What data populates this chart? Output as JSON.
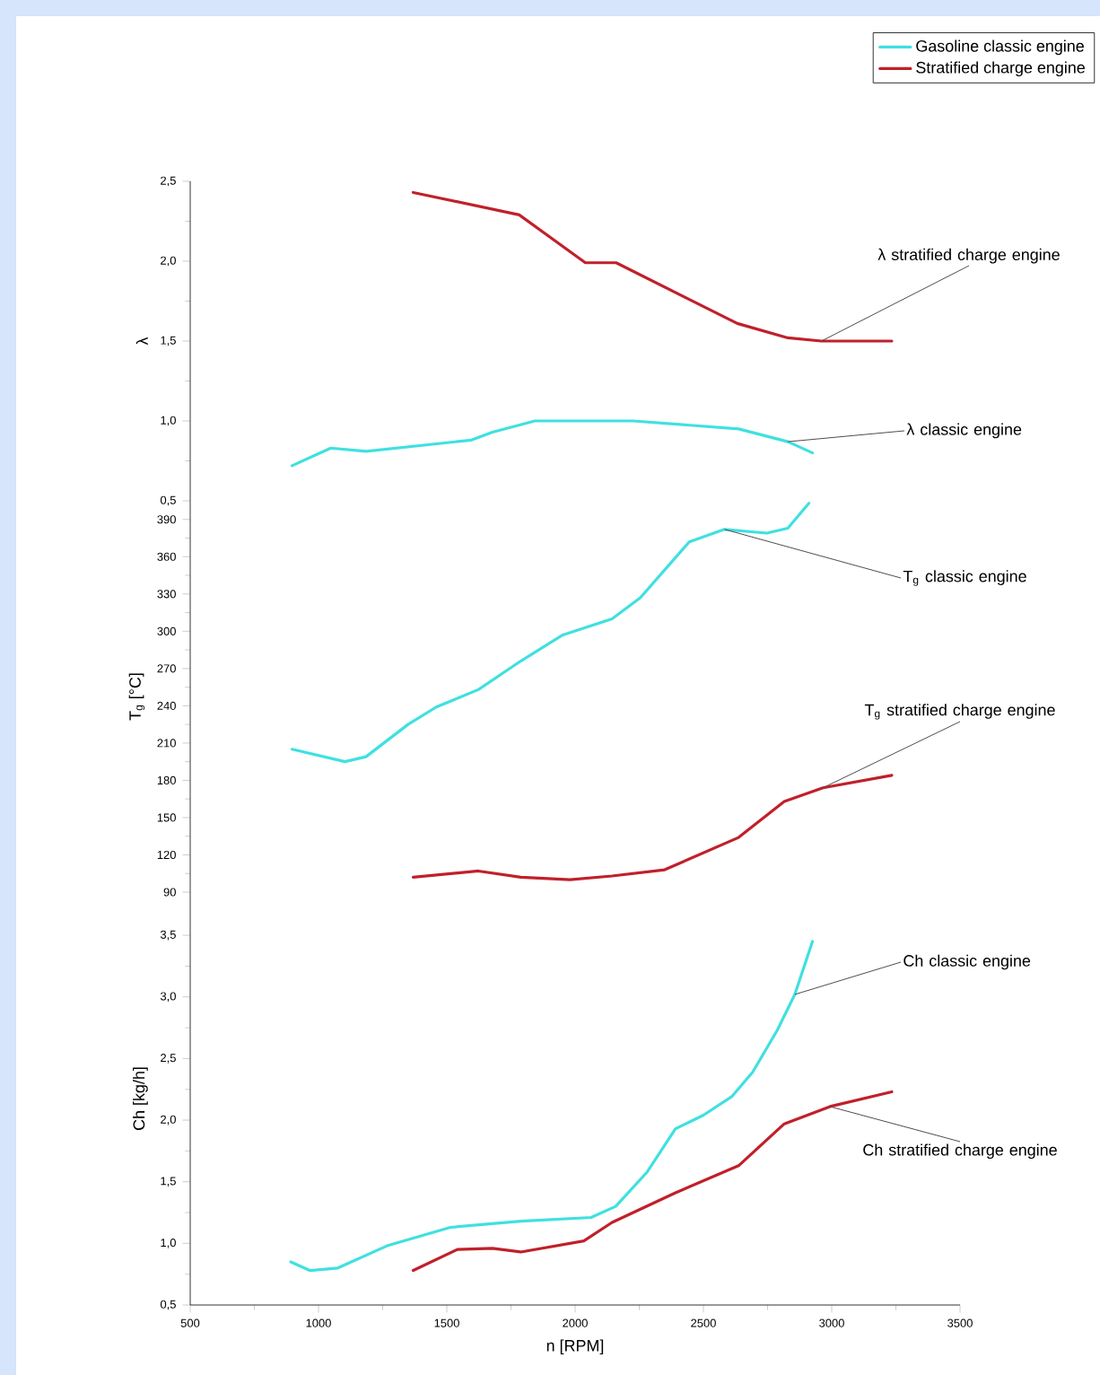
{
  "chart_data": [
    {
      "type": "line",
      "ylabel": "λ",
      "xlim": [
        500,
        3500
      ],
      "ylim": [
        0.5,
        2.5
      ],
      "tick_labels": "y",
      "legend": "top right",
      "yticks": [
        {
          "value": 0.5,
          "label": "0,5"
        },
        {
          "value": 1.0,
          "label": "1,0"
        },
        {
          "value": 1.5,
          "label": "1,5"
        },
        {
          "value": 2.0,
          "label": "2,0"
        },
        {
          "value": 2.5,
          "label": "2,5"
        }
      ],
      "series": [
        {
          "name": "Gasoline classic engine",
          "color": "#40e0e0",
          "x": [
            897,
            1048,
            1185,
            1596,
            1678,
            1843,
            2226,
            2637,
            2829,
            2925
          ],
          "values": [
            0.72,
            0.83,
            0.81,
            0.88,
            0.93,
            1.0,
            1.0,
            0.95,
            0.87,
            0.8
          ]
        },
        {
          "name": "Stratified charge engine",
          "color": "#c0202a",
          "x": [
            1369,
            1782,
            2040,
            2160,
            2632,
            2829,
            2960,
            3234
          ],
          "values": [
            2.43,
            2.29,
            1.99,
            1.99,
            1.61,
            1.52,
            1.5,
            1.5
          ]
        }
      ],
      "annotations": [
        {
          "text": "λ stratified charge engine",
          "x": 2960,
          "y": 1.5
        },
        {
          "text": "λ classic engine",
          "x": 2829,
          "y": 0.87
        }
      ]
    },
    {
      "type": "line",
      "ylabel": "T$_{g}$ [°C]",
      "xlim": [
        500,
        3500
      ],
      "ylim": [
        90,
        405
      ],
      "tick_labels": "y",
      "yticks": [
        90,
        120,
        150,
        180,
        210,
        240,
        270,
        300,
        330,
        360,
        390
      ],
      "series": [
        {
          "color": "#40e0e0",
          "x": [
            897,
            1103,
            1185,
            1349,
            1459,
            1623,
            1788,
            1952,
            2144,
            2254,
            2445,
            2582,
            2747,
            2829,
            2911
          ],
          "values": [
            205,
            195,
            199,
            225,
            239,
            253,
            276,
            297,
            310,
            327,
            372,
            382,
            379,
            383,
            403
          ]
        },
        {
          "color": "#c0202a",
          "x": [
            1369,
            1623,
            1788,
            1980,
            2144,
            2349,
            2637,
            2815,
            2966,
            3234
          ],
          "values": [
            102,
            107,
            102,
            100,
            103,
            108,
            134,
            163,
            174,
            184
          ]
        }
      ],
      "annotations": [
        {
          "text": "T$_{g}$ classic engine",
          "x": 2582,
          "y": 382
        },
        {
          "text": "T$_{g}$ stratified charge engine",
          "x": 2966,
          "y": 174
        }
      ]
    },
    {
      "type": "line",
      "ylabel": "Ch [kg/h]",
      "xlabel": "n [RPM]",
      "xlim": [
        500,
        3500
      ],
      "ylim": [
        0.5,
        3.85
      ],
      "xticks": [
        500,
        1000,
        1500,
        2000,
        2500,
        3000,
        3500
      ],
      "yticks": [
        {
          "value": 0.5,
          "label": "0,5"
        },
        {
          "value": 1.0,
          "label": "1,0"
        },
        {
          "value": 1.5,
          "label": "1,5"
        },
        {
          "value": 2.0,
          "label": "2,0"
        },
        {
          "value": 2.5,
          "label": "2,5"
        },
        {
          "value": 3.0,
          "label": "3,0"
        },
        {
          "value": 3.5,
          "label": "3,5"
        }
      ],
      "series": [
        {
          "color": "#40e0e0",
          "x": [
            892,
            966,
            1075,
            1267,
            1514,
            1788,
            2062,
            2158,
            2281,
            2391,
            2500,
            2610,
            2692,
            2788,
            2856,
            2925
          ],
          "values": [
            0.85,
            0.78,
            0.8,
            0.98,
            1.13,
            1.18,
            1.21,
            1.3,
            1.58,
            1.93,
            2.04,
            2.19,
            2.39,
            2.73,
            3.02,
            3.45
          ]
        },
        {
          "color": "#c0202a",
          "x": [
            1369,
            1541,
            1678,
            1788,
            2034,
            2144,
            2391,
            2637,
            2815,
            2993,
            3234
          ],
          "values": [
            0.78,
            0.95,
            0.96,
            0.93,
            1.02,
            1.17,
            1.41,
            1.63,
            1.97,
            2.11,
            2.23
          ]
        }
      ],
      "annotations": [
        {
          "text": "Ch classic engine",
          "x": 2856,
          "y": 3.02
        },
        {
          "text": "Ch stratified charge engine",
          "x": 2993,
          "y": 2.11
        }
      ]
    }
  ]
}
